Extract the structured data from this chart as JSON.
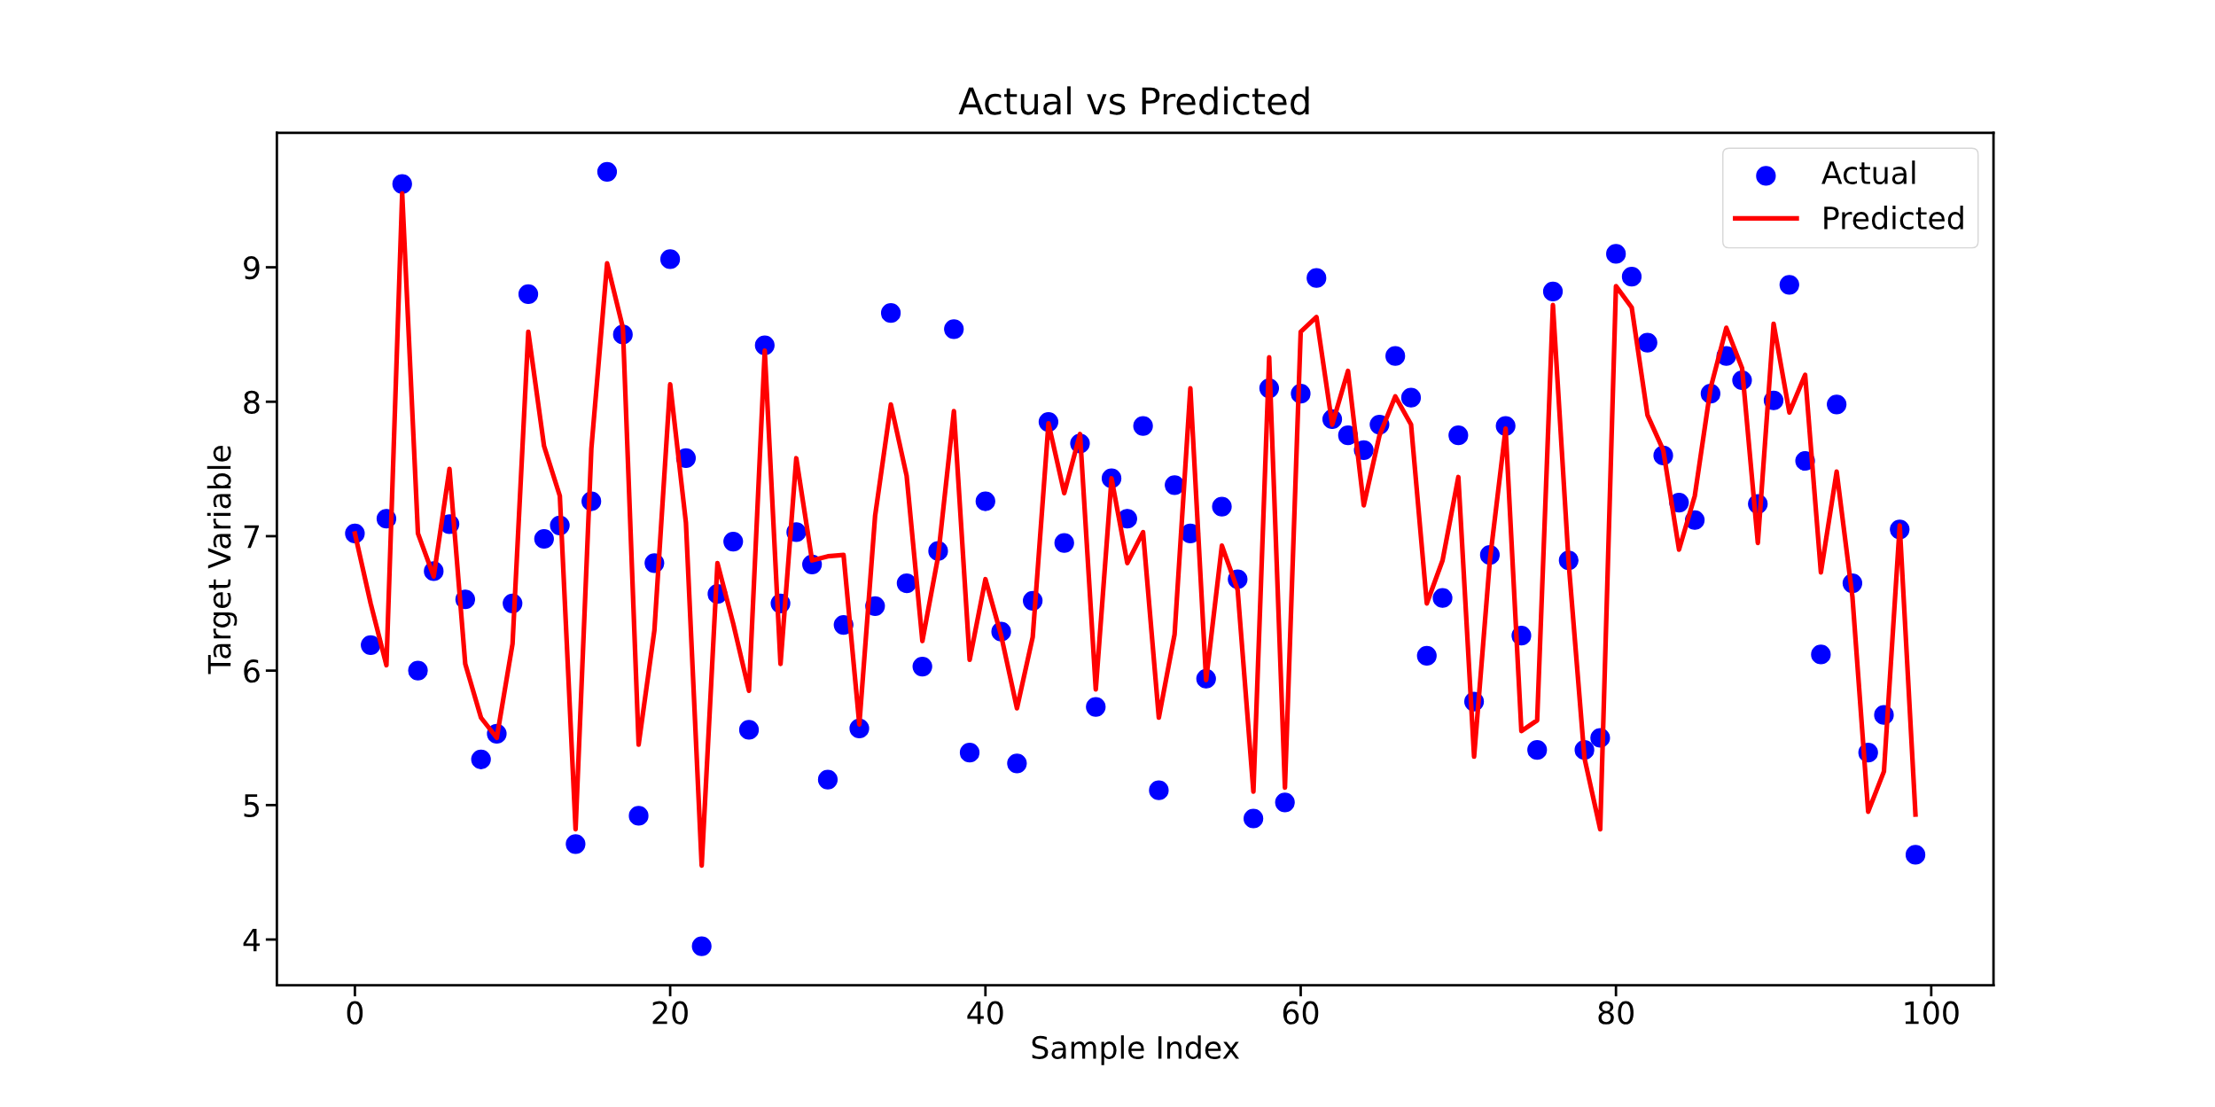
{
  "chart_data": {
    "type": "scatter",
    "title": "Actual vs Predicted",
    "xlabel": "Sample Index",
    "ylabel": "Target Variable",
    "x": [
      0,
      1,
      2,
      3,
      4,
      5,
      6,
      7,
      8,
      9,
      10,
      11,
      12,
      13,
      14,
      15,
      16,
      17,
      18,
      19,
      20,
      21,
      22,
      23,
      24,
      25,
      26,
      27,
      28,
      29,
      30,
      31,
      32,
      33,
      34,
      35,
      36,
      37,
      38,
      39,
      40,
      41,
      42,
      43,
      44,
      45,
      46,
      47,
      48,
      49,
      50,
      51,
      52,
      53,
      54,
      55,
      56,
      57,
      58,
      59,
      60,
      61,
      62,
      63,
      64,
      65,
      66,
      67,
      68,
      69,
      70,
      71,
      72,
      73,
      74,
      75,
      76,
      77,
      78,
      79,
      80,
      81,
      82,
      83,
      84,
      85,
      86,
      87,
      88,
      89,
      90,
      91,
      92,
      93,
      94,
      95,
      96,
      97,
      98,
      99
    ],
    "series": [
      {
        "name": "Actual",
        "color": "#0000ff",
        "marker": "circle",
        "values": [
          7.02,
          6.19,
          7.13,
          9.62,
          6.0,
          6.74,
          7.09,
          6.53,
          5.34,
          5.53,
          6.5,
          8.8,
          6.98,
          7.08,
          4.71,
          7.26,
          9.71,
          8.5,
          4.92,
          6.8,
          9.06,
          7.58,
          3.95,
          6.57,
          6.96,
          5.56,
          8.42,
          6.5,
          7.03,
          6.79,
          5.19,
          6.34,
          5.57,
          6.48,
          8.66,
          6.65,
          6.03,
          6.89,
          8.54,
          5.39,
          7.26,
          6.29,
          5.31,
          6.52,
          7.85,
          6.95,
          7.69,
          5.73,
          7.43,
          7.13,
          7.82,
          5.11,
          7.38,
          7.02,
          5.94,
          7.22,
          6.68,
          4.9,
          8.1,
          5.02,
          8.06,
          8.92,
          7.87,
          7.75,
          7.64,
          7.83,
          8.34,
          8.03,
          6.11,
          6.54,
          7.75,
          5.77,
          6.86,
          7.82,
          6.26,
          5.41,
          8.82,
          6.82,
          5.41,
          5.5,
          9.1,
          8.93,
          8.44,
          7.6,
          7.25,
          7.12,
          8.06,
          8.34,
          8.16,
          7.24,
          8.01,
          8.87,
          7.56,
          6.12,
          7.98,
          6.65,
          5.39,
          5.67,
          7.05,
          4.63
        ]
      },
      {
        "name": "Predicted",
        "type": "line",
        "color": "#ff0000",
        "line_style": "solid",
        "values": [
          7.02,
          6.5,
          6.04,
          9.55,
          7.02,
          6.7,
          7.5,
          6.05,
          5.65,
          5.5,
          6.2,
          8.52,
          7.67,
          7.3,
          4.82,
          7.65,
          9.03,
          8.55,
          5.45,
          6.3,
          8.13,
          7.1,
          4.55,
          6.8,
          6.35,
          5.85,
          8.38,
          6.05,
          7.58,
          6.82,
          6.85,
          6.86,
          5.6,
          7.15,
          7.98,
          7.45,
          6.22,
          6.85,
          7.93,
          6.08,
          6.68,
          6.26,
          5.72,
          6.25,
          7.84,
          7.32,
          7.76,
          5.86,
          7.43,
          6.8,
          7.03,
          5.65,
          6.27,
          8.1,
          5.93,
          6.93,
          6.6,
          5.1,
          8.33,
          5.13,
          8.52,
          8.63,
          7.83,
          8.23,
          7.23,
          7.75,
          8.04,
          7.83,
          6.5,
          6.82,
          7.44,
          5.36,
          6.82,
          7.8,
          5.55,
          5.63,
          8.72,
          6.8,
          5.35,
          4.82,
          8.86,
          8.7,
          7.9,
          7.64,
          6.9,
          7.3,
          8.1,
          8.55,
          8.25,
          6.95,
          8.58,
          7.92,
          8.2,
          6.73,
          7.48,
          6.55,
          4.95,
          5.25,
          7.08,
          4.93
        ]
      }
    ],
    "xlim": [
      -4.95,
      103.95
    ],
    "ylim": [
      3.66,
      10.0
    ],
    "xticks": [
      0,
      20,
      40,
      60,
      80,
      100
    ],
    "yticks": [
      4,
      5,
      6,
      7,
      8,
      9
    ],
    "grid": false,
    "legend": "top right"
  }
}
